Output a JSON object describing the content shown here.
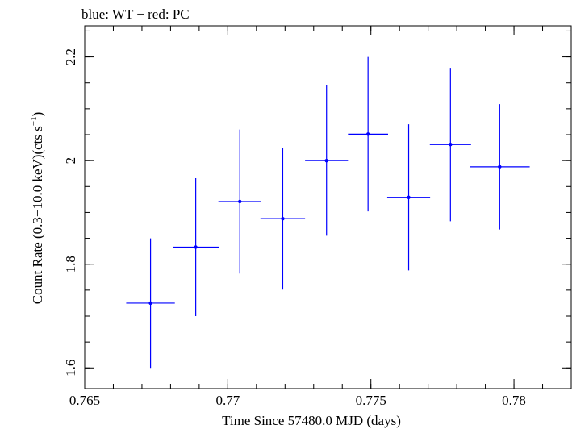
{
  "chart_data": {
    "type": "scatter",
    "title": "blue: WT − red: PC",
    "xlabel": "Time Since 57480.0 MJD (days)",
    "ylabel_main": "Count Rate (0.3−10.0 keV)(cts s",
    "ylabel_sup": "−1",
    "ylabel_tail": ")",
    "xlim": [
      0.765,
      0.782
    ],
    "ylim": [
      1.56,
      2.26
    ],
    "x_ticks": [
      {
        "value": 0.765,
        "label": "0.765"
      },
      {
        "value": 0.77,
        "label": "0.77"
      },
      {
        "value": 0.775,
        "label": "0.775"
      },
      {
        "value": 0.78,
        "label": "0.78"
      }
    ],
    "y_ticks": [
      {
        "value": 1.6,
        "label": "1.6"
      },
      {
        "value": 1.8,
        "label": "1.8"
      },
      {
        "value": 2.0,
        "label": "2"
      },
      {
        "value": 2.2,
        "label": "2.2"
      }
    ],
    "x_minor_step": 0.001,
    "y_minor_step": 0.05,
    "grid": false,
    "series": [
      {
        "color": "#0000ff",
        "points": [
          {
            "x": 0.7673,
            "xerr": 0.00085,
            "y": 1.725,
            "yerr_lo": 0.125,
            "yerr_hi": 0.125
          },
          {
            "x": 0.76888,
            "xerr": 0.0008,
            "y": 1.833,
            "yerr_lo": 0.133,
            "yerr_hi": 0.133
          },
          {
            "x": 0.77042,
            "xerr": 0.00075,
            "y": 1.921,
            "yerr_lo": 0.139,
            "yerr_hi": 0.139
          },
          {
            "x": 0.77192,
            "xerr": 0.00078,
            "y": 1.888,
            "yerr_lo": 0.137,
            "yerr_hi": 0.137
          },
          {
            "x": 0.77345,
            "xerr": 0.00075,
            "y": 2.0,
            "yerr_lo": 0.145,
            "yerr_hi": 0.145
          },
          {
            "x": 0.7749,
            "xerr": 0.0007,
            "y": 2.051,
            "yerr_lo": 0.149,
            "yerr_hi": 0.149
          },
          {
            "x": 0.77632,
            "xerr": 0.00075,
            "y": 1.929,
            "yerr_lo": 0.141,
            "yerr_hi": 0.141
          },
          {
            "x": 0.77778,
            "xerr": 0.00072,
            "y": 2.031,
            "yerr_lo": 0.148,
            "yerr_hi": 0.148
          },
          {
            "x": 0.7795,
            "xerr": 0.00105,
            "y": 1.988,
            "yerr_lo": 0.121,
            "yerr_hi": 0.121
          }
        ]
      }
    ]
  }
}
